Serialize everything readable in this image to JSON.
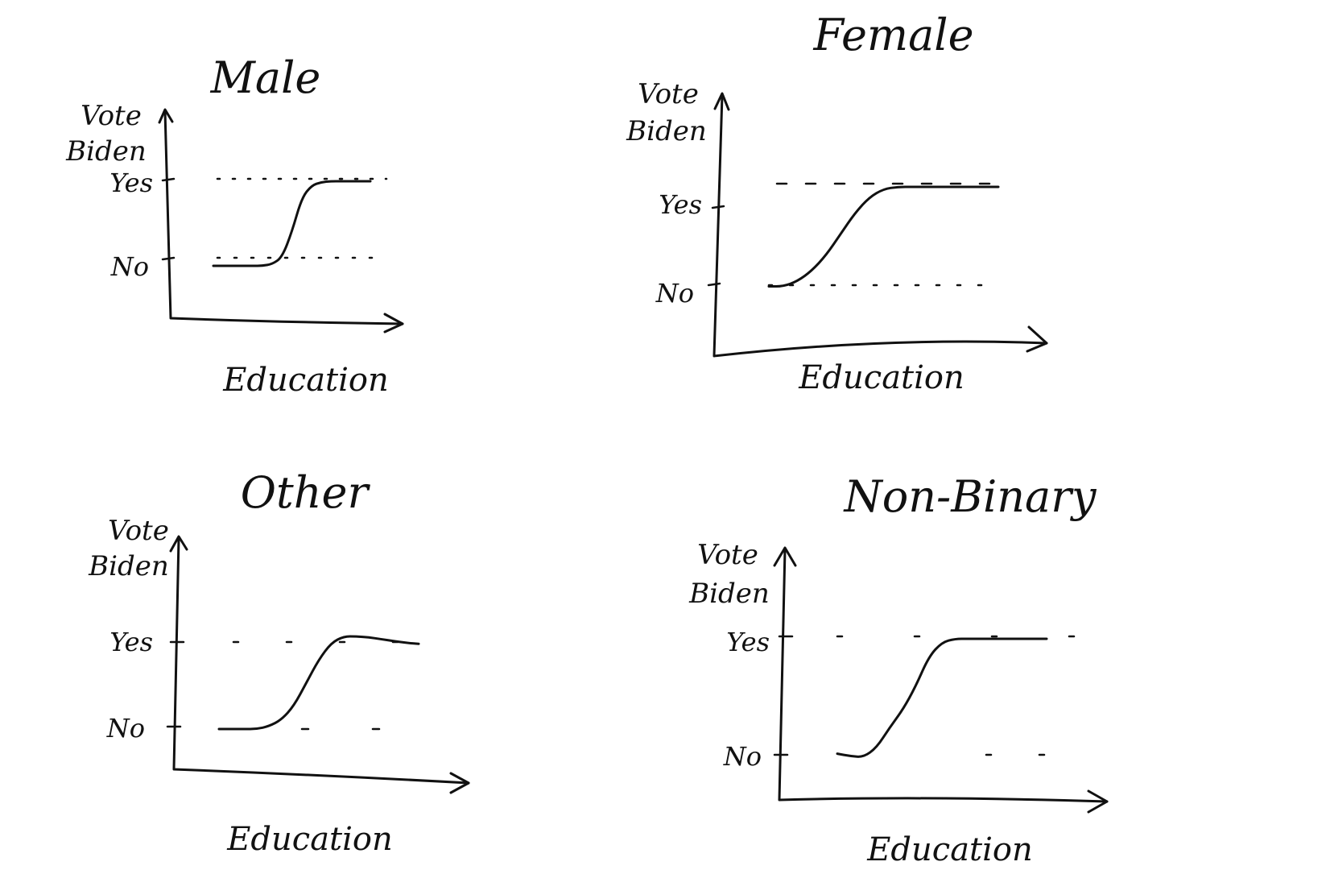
{
  "chart_data": [
    {
      "type": "line",
      "title": "Male",
      "xlabel": "Education",
      "ylabel": "Vote Biden",
      "y_ticks": [
        "Yes",
        "No"
      ],
      "series": [
        {
          "values": [
            0,
            0,
            0,
            0,
            0,
            0,
            0.02,
            0.1,
            0.4,
            0.8,
            0.95,
            0.99,
            1,
            1,
            1,
            1,
            1
          ]
        }
      ],
      "x": [
        0,
        0.0625,
        0.125,
        0.1875,
        0.25,
        0.3125,
        0.375,
        0.4375,
        0.5,
        0.5625,
        0.625,
        0.6875,
        0.75,
        0.8125,
        0.875,
        0.9375,
        1
      ],
      "ylim": [
        0,
        1
      ],
      "grid": false
    },
    {
      "type": "line",
      "title": "Female",
      "xlabel": "Education",
      "ylabel": "Vote Biden",
      "y_ticks": [
        "Yes",
        "No"
      ],
      "series": [
        {
          "values": [
            0.05,
            0.05,
            0.1,
            0.2,
            0.35,
            0.55,
            0.75,
            0.9,
            0.98,
            1,
            1,
            1,
            1,
            1,
            1,
            1,
            1
          ]
        }
      ],
      "x": [
        0,
        0.0625,
        0.125,
        0.1875,
        0.25,
        0.3125,
        0.375,
        0.4375,
        0.5,
        0.5625,
        0.625,
        0.6875,
        0.75,
        0.8125,
        0.875,
        0.9375,
        1
      ],
      "ylim": [
        0,
        1
      ],
      "grid": false
    },
    {
      "type": "line",
      "title": "Other",
      "xlabel": "Education",
      "ylabel": "Vote Biden",
      "y_ticks": [
        "Yes",
        "No"
      ],
      "series": [
        {
          "values": [
            0,
            0,
            0,
            0,
            0.03,
            0.1,
            0.25,
            0.5,
            0.75,
            0.93,
            1,
            1,
            0.99,
            0.97,
            0.95,
            0.93,
            0.92
          ]
        }
      ],
      "x": [
        0,
        0.0625,
        0.125,
        0.1875,
        0.25,
        0.3125,
        0.375,
        0.4375,
        0.5,
        0.5625,
        0.625,
        0.6875,
        0.75,
        0.8125,
        0.875,
        0.9375,
        1
      ],
      "ylim": [
        0,
        1
      ],
      "grid": false
    },
    {
      "type": "line",
      "title": "Non-Binary",
      "xlabel": "Education",
      "ylabel": "Vote Biden",
      "y_ticks": [
        "Yes",
        "No"
      ],
      "series": [
        {
          "values": [
            0.03,
            0.01,
            0,
            0.08,
            0.25,
            0.4,
            0.6,
            0.85,
            0.97,
            1,
            1,
            1,
            1,
            1,
            1,
            1,
            1
          ]
        }
      ],
      "x": [
        0,
        0.0625,
        0.125,
        0.1875,
        0.25,
        0.3125,
        0.375,
        0.4375,
        0.5,
        0.5625,
        0.625,
        0.6875,
        0.75,
        0.8125,
        0.875,
        0.9375,
        1
      ],
      "ylim": [
        0,
        1
      ],
      "grid": false
    }
  ]
}
